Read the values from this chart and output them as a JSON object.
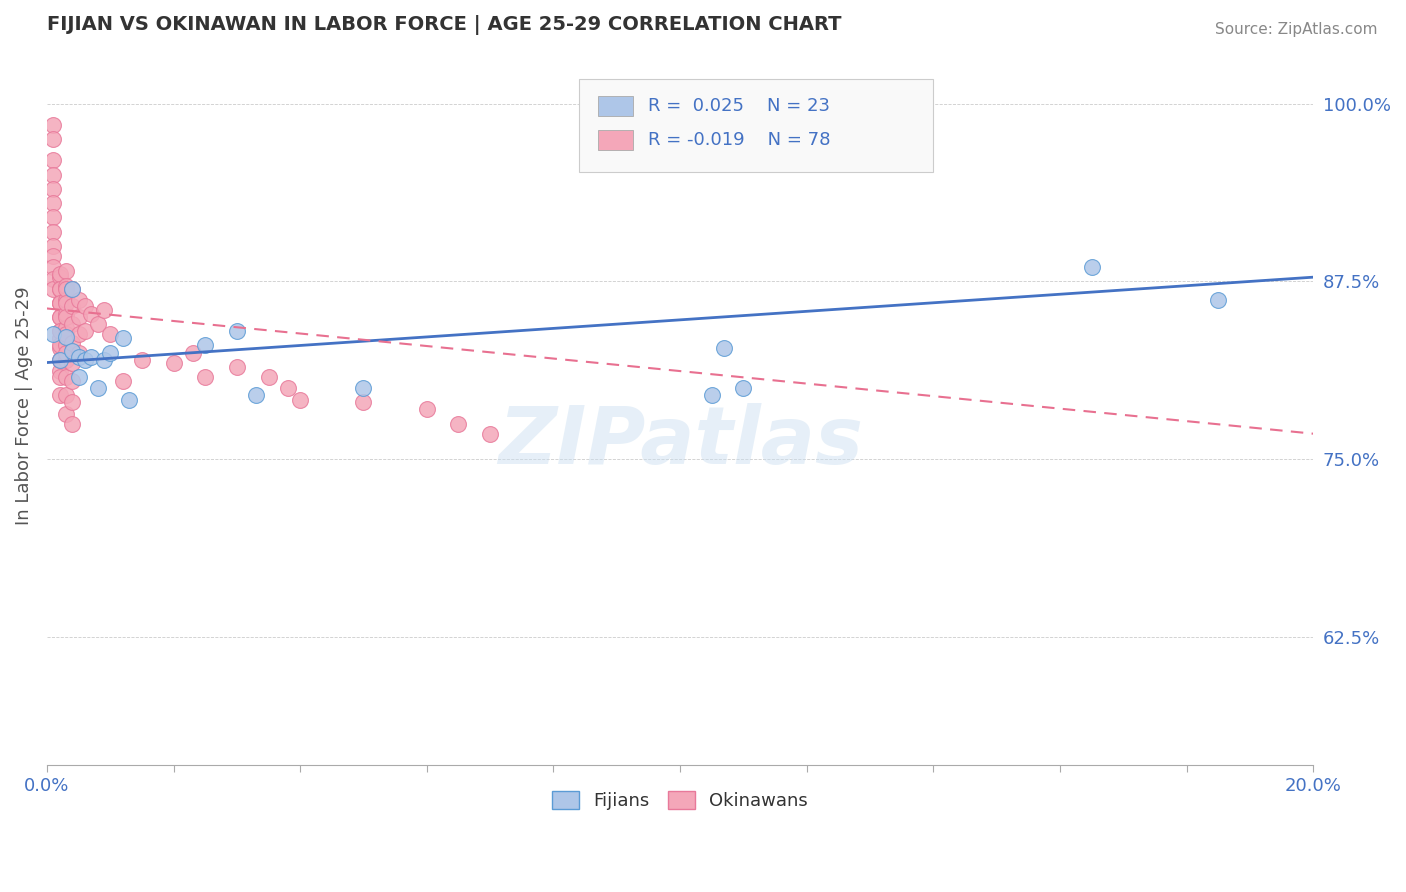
{
  "title": "FIJIAN VS OKINAWAN IN LABOR FORCE | AGE 25-29 CORRELATION CHART",
  "source": "Source: ZipAtlas.com",
  "ylabel": "In Labor Force | Age 25-29",
  "ytick_labels": [
    "62.5%",
    "75.0%",
    "87.5%",
    "100.0%"
  ],
  "ytick_values": [
    0.625,
    0.75,
    0.875,
    1.0
  ],
  "xlim": [
    0.0,
    0.2
  ],
  "ylim": [
    0.535,
    1.04
  ],
  "fijian_color": "#aec6e8",
  "okinawan_color": "#f4a7b9",
  "fijian_edge": "#5b9bd5",
  "okinawan_edge": "#e8799a",
  "trend_fijian_color": "#4472c4",
  "trend_okinawan_color": "#e87090",
  "watermark": "ZIPatlas",
  "fijians_x": [
    0.001,
    0.002,
    0.003,
    0.004,
    0.004,
    0.005,
    0.005,
    0.006,
    0.007,
    0.008,
    0.009,
    0.01,
    0.012,
    0.013,
    0.025,
    0.03,
    0.033,
    0.05,
    0.105,
    0.107,
    0.11,
    0.165,
    0.185
  ],
  "fijians_y": [
    0.838,
    0.82,
    0.836,
    0.826,
    0.87,
    0.808,
    0.822,
    0.82,
    0.822,
    0.8,
    0.82,
    0.825,
    0.835,
    0.792,
    0.83,
    0.84,
    0.795,
    0.8,
    0.795,
    0.828,
    0.8,
    0.885,
    0.862
  ],
  "okinawans_x": [
    0.001,
    0.001,
    0.001,
    0.001,
    0.001,
    0.001,
    0.001,
    0.001,
    0.001,
    0.001,
    0.001,
    0.001,
    0.001,
    0.002,
    0.002,
    0.002,
    0.002,
    0.002,
    0.002,
    0.002,
    0.002,
    0.002,
    0.002,
    0.002,
    0.002,
    0.002,
    0.002,
    0.002,
    0.002,
    0.002,
    0.002,
    0.002,
    0.003,
    0.003,
    0.003,
    0.003,
    0.003,
    0.003,
    0.003,
    0.003,
    0.003,
    0.003,
    0.003,
    0.003,
    0.003,
    0.003,
    0.003,
    0.004,
    0.004,
    0.004,
    0.004,
    0.004,
    0.004,
    0.004,
    0.004,
    0.005,
    0.005,
    0.005,
    0.005,
    0.006,
    0.006,
    0.007,
    0.008,
    0.009,
    0.01,
    0.012,
    0.015,
    0.02,
    0.023,
    0.025,
    0.03,
    0.035,
    0.038,
    0.04,
    0.05,
    0.06,
    0.065,
    0.07
  ],
  "okinawans_y": [
    0.985,
    0.975,
    0.96,
    0.95,
    0.94,
    0.93,
    0.92,
    0.91,
    0.9,
    0.893,
    0.885,
    0.877,
    0.87,
    0.86,
    0.878,
    0.87,
    0.86,
    0.85,
    0.84,
    0.835,
    0.828,
    0.82,
    0.812,
    0.88,
    0.87,
    0.86,
    0.85,
    0.84,
    0.83,
    0.82,
    0.808,
    0.795,
    0.882,
    0.872,
    0.862,
    0.852,
    0.842,
    0.83,
    0.82,
    0.808,
    0.795,
    0.782,
    0.87,
    0.86,
    0.85,
    0.838,
    0.825,
    0.87,
    0.858,
    0.845,
    0.832,
    0.818,
    0.805,
    0.79,
    0.775,
    0.862,
    0.85,
    0.838,
    0.825,
    0.858,
    0.84,
    0.852,
    0.845,
    0.855,
    0.838,
    0.805,
    0.82,
    0.818,
    0.825,
    0.808,
    0.815,
    0.808,
    0.8,
    0.792,
    0.79,
    0.785,
    0.775,
    0.768
  ]
}
